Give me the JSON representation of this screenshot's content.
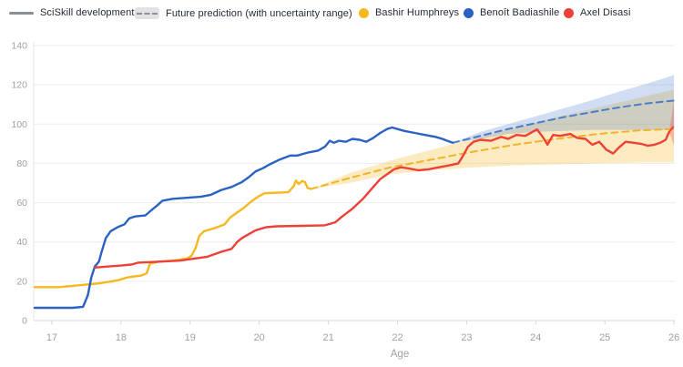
{
  "legend": {
    "sciskill_label": "SciSkill development",
    "prediction_label": "Future prediction (with uncertainty range)"
  },
  "colors": {
    "legend_text": "#1f2733",
    "legend_gray": "#8a9096",
    "tick_text": "#9aa1a9",
    "gridline": "#ececec",
    "axis_line": "#d7d7d7",
    "y_axis_line": "#e4e4e4"
  },
  "chart_data": {
    "type": "line",
    "title": "",
    "xlabel": "Age",
    "ylabel": "",
    "xlim": [
      16.73,
      26.05
    ],
    "ylim": [
      0,
      140
    ],
    "x_ticks": [
      17,
      18,
      19,
      20,
      21,
      22,
      23,
      24,
      25,
      26
    ],
    "y_ticks": [
      0,
      20,
      40,
      60,
      80,
      100,
      120,
      140
    ],
    "grid": "horizontal",
    "legend_position": "top",
    "series": [
      {
        "name": "Bashir Humphreys",
        "color": "#F5B81F",
        "dash_color": "#F2B32A",
        "band_color": "#F5B81F",
        "band_opacity": 0.28,
        "points": [
          [
            16.75,
            17
          ],
          [
            17.1,
            17
          ],
          [
            17.4,
            18
          ],
          [
            17.7,
            19
          ],
          [
            17.95,
            20.5
          ],
          [
            18.1,
            22
          ],
          [
            18.3,
            23
          ],
          [
            18.37,
            24
          ],
          [
            18.42,
            29
          ],
          [
            18.55,
            30
          ],
          [
            18.75,
            30.5
          ],
          [
            18.95,
            31.5
          ],
          [
            19.02,
            33
          ],
          [
            19.08,
            37
          ],
          [
            19.13,
            43
          ],
          [
            19.2,
            45.5
          ],
          [
            19.35,
            47
          ],
          [
            19.5,
            49
          ],
          [
            19.58,
            52.5
          ],
          [
            19.68,
            55
          ],
          [
            19.78,
            57.5
          ],
          [
            19.88,
            60.5
          ],
          [
            19.98,
            63
          ],
          [
            20.08,
            64.8
          ],
          [
            20.2,
            65
          ],
          [
            20.42,
            65.3
          ],
          [
            20.5,
            68.5
          ],
          [
            20.53,
            71.3
          ],
          [
            20.57,
            69.5
          ],
          [
            20.62,
            71
          ],
          [
            20.66,
            70.5
          ],
          [
            20.7,
            67.5
          ],
          [
            20.75,
            67
          ]
        ],
        "prediction": [
          [
            20.75,
            67
          ],
          [
            21.3,
            72.5
          ],
          [
            21.9,
            78
          ],
          [
            22.5,
            82
          ],
          [
            23.1,
            86
          ],
          [
            23.7,
            89.5
          ],
          [
            24.3,
            92.5
          ],
          [
            24.9,
            95
          ],
          [
            25.5,
            96.8
          ],
          [
            26,
            97.5
          ]
        ],
        "band": [
          [
            20.75,
            67,
            67
          ],
          [
            21.3,
            75,
            70
          ],
          [
            21.9,
            81.5,
            74.5
          ],
          [
            22.5,
            87,
            76.5
          ],
          [
            23.1,
            92.5,
            78
          ],
          [
            23.7,
            98,
            79
          ],
          [
            24.3,
            103.5,
            79.5
          ],
          [
            24.9,
            108.5,
            80
          ],
          [
            25.5,
            113.5,
            80.5
          ],
          [
            26,
            117.5,
            80.5
          ]
        ]
      },
      {
        "name": "Benoît Badiashile",
        "color": "#2A62C4",
        "dash_color": "#4A7CC9",
        "band_color": "#2A62C4",
        "band_opacity": 0.22,
        "points": [
          [
            16.75,
            6.5
          ],
          [
            17.3,
            6.5
          ],
          [
            17.45,
            7
          ],
          [
            17.52,
            13
          ],
          [
            17.57,
            22
          ],
          [
            17.62,
            27.5
          ],
          [
            17.68,
            30
          ],
          [
            17.72,
            35
          ],
          [
            17.78,
            42
          ],
          [
            17.85,
            45.5
          ],
          [
            17.95,
            47.5
          ],
          [
            18.05,
            49
          ],
          [
            18.12,
            52
          ],
          [
            18.2,
            53
          ],
          [
            18.35,
            53.5
          ],
          [
            18.45,
            56.5
          ],
          [
            18.52,
            58.5
          ],
          [
            18.6,
            61
          ],
          [
            18.75,
            62
          ],
          [
            18.95,
            62.5
          ],
          [
            19.15,
            63
          ],
          [
            19.3,
            64
          ],
          [
            19.45,
            66.5
          ],
          [
            19.6,
            68
          ],
          [
            19.75,
            70.5
          ],
          [
            19.85,
            73
          ],
          [
            19.95,
            76
          ],
          [
            20.05,
            77.5
          ],
          [
            20.15,
            79.5
          ],
          [
            20.3,
            82
          ],
          [
            20.45,
            84
          ],
          [
            20.55,
            84
          ],
          [
            20.7,
            85.5
          ],
          [
            20.85,
            86.5
          ],
          [
            20.95,
            88.5
          ],
          [
            21.02,
            91.5
          ],
          [
            21.08,
            90.5
          ],
          [
            21.15,
            91.5
          ],
          [
            21.25,
            91
          ],
          [
            21.35,
            92.5
          ],
          [
            21.45,
            92
          ],
          [
            21.55,
            91
          ],
          [
            21.65,
            93
          ],
          [
            21.75,
            95.5
          ],
          [
            21.85,
            97.5
          ],
          [
            21.92,
            98.3
          ],
          [
            22.0,
            97.5
          ],
          [
            22.1,
            96.5
          ],
          [
            22.25,
            95.5
          ],
          [
            22.4,
            94.5
          ],
          [
            22.55,
            93.5
          ],
          [
            22.65,
            92.5
          ],
          [
            22.72,
            91.5
          ],
          [
            22.8,
            90.5
          ]
        ],
        "prediction": [
          [
            22.8,
            90.5
          ],
          [
            23.2,
            94
          ],
          [
            23.6,
            97.5
          ],
          [
            24.0,
            100.5
          ],
          [
            24.4,
            103.5
          ],
          [
            24.8,
            106
          ],
          [
            25.2,
            108.5
          ],
          [
            25.6,
            110.5
          ],
          [
            26,
            112
          ]
        ],
        "band": [
          [
            22.8,
            90.5,
            90.5
          ],
          [
            23.2,
            96,
            92.5
          ],
          [
            23.6,
            100,
            95
          ],
          [
            24.0,
            104,
            96
          ],
          [
            24.4,
            108,
            96.5
          ],
          [
            24.8,
            112,
            97
          ],
          [
            25.2,
            116.5,
            97
          ],
          [
            25.6,
            120.5,
            97
          ],
          [
            26,
            125,
            97
          ]
        ]
      },
      {
        "name": "Axel Disasi",
        "color": "#EE4037",
        "dash_color": "#EE4037",
        "band_color": "#EE4037",
        "band_opacity": 0.3,
        "points": [
          [
            17.62,
            27
          ],
          [
            17.8,
            27.5
          ],
          [
            18.0,
            28
          ],
          [
            18.15,
            28.5
          ],
          [
            18.25,
            29.5
          ],
          [
            18.55,
            30
          ],
          [
            18.85,
            30.5
          ],
          [
            19.05,
            31.5
          ],
          [
            19.25,
            32.5
          ],
          [
            19.45,
            35
          ],
          [
            19.6,
            36.5
          ],
          [
            19.68,
            40
          ],
          [
            19.75,
            42
          ],
          [
            19.85,
            44
          ],
          [
            19.95,
            46
          ],
          [
            20.1,
            47.5
          ],
          [
            20.25,
            48
          ],
          [
            20.6,
            48.2
          ],
          [
            20.95,
            48.5
          ],
          [
            21.1,
            50
          ],
          [
            21.2,
            53
          ],
          [
            21.35,
            57
          ],
          [
            21.5,
            62
          ],
          [
            21.65,
            68
          ],
          [
            21.75,
            72
          ],
          [
            21.85,
            74.5
          ],
          [
            21.95,
            77
          ],
          [
            22.05,
            78
          ],
          [
            22.15,
            77.5
          ],
          [
            22.3,
            76.5
          ],
          [
            22.45,
            77
          ],
          [
            22.6,
            78
          ],
          [
            22.75,
            79
          ],
          [
            22.88,
            80
          ],
          [
            22.95,
            84
          ],
          [
            23.02,
            88.5
          ],
          [
            23.1,
            91
          ],
          [
            23.2,
            92
          ],
          [
            23.35,
            91.5
          ],
          [
            23.5,
            93.5
          ],
          [
            23.6,
            92.5
          ],
          [
            23.72,
            94.5
          ],
          [
            23.85,
            94
          ],
          [
            23.95,
            96
          ],
          [
            24.02,
            97.3
          ],
          [
            24.1,
            93.5
          ],
          [
            24.17,
            89.5
          ],
          [
            24.25,
            94.5
          ],
          [
            24.35,
            94
          ],
          [
            24.5,
            95
          ],
          [
            24.6,
            93
          ],
          [
            24.72,
            92.5
          ],
          [
            24.82,
            89.5
          ],
          [
            24.92,
            91
          ],
          [
            25.02,
            87
          ],
          [
            25.12,
            85
          ],
          [
            25.2,
            88
          ],
          [
            25.3,
            91
          ],
          [
            25.42,
            90.5
          ],
          [
            25.52,
            90
          ],
          [
            25.62,
            89
          ],
          [
            25.72,
            89.5
          ],
          [
            25.8,
            90.5
          ],
          [
            25.88,
            92
          ],
          [
            25.93,
            96
          ]
        ],
        "prediction": [
          [
            25.93,
            96
          ],
          [
            26,
            99
          ]
        ],
        "band": [
          [
            25.93,
            96,
            96
          ],
          [
            26,
            112,
            89
          ]
        ]
      }
    ]
  }
}
